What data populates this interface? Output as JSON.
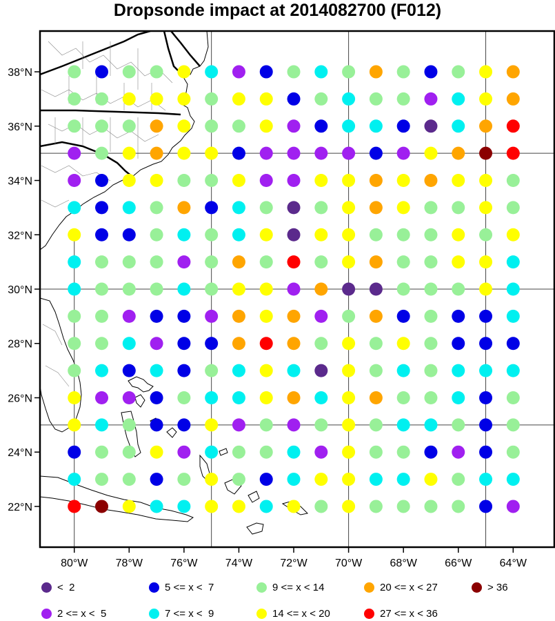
{
  "title": "Dropsonde impact at 2014082700 (F012)",
  "map": {
    "lon_range": [
      -81.25,
      -62.5
    ],
    "lat_range": [
      20.5,
      39.5
    ],
    "graticule_lons": [
      -75,
      -70,
      -65
    ],
    "graticule_lats": [
      25,
      30,
      35
    ],
    "lon_ticks": [
      -80,
      -78,
      -76,
      -74,
      -72,
      -70,
      -68,
      -66,
      -64
    ],
    "lon_tick_labels": [
      "80°W",
      "78°W",
      "76°W",
      "74°W",
      "72°W",
      "70°W",
      "68°W",
      "66°W",
      "64°W"
    ],
    "lat_ticks": [
      22,
      24,
      26,
      28,
      30,
      32,
      34,
      36,
      38
    ],
    "lat_tick_labels": [
      "22°N",
      "24°N",
      "26°N",
      "28°N",
      "30°N",
      "32°N",
      "34°N",
      "36°N",
      "38°N"
    ],
    "land_features": [
      "US East Coast",
      "Florida",
      "Bahamas",
      "Cuba"
    ]
  },
  "legend": {
    "items": [
      {
        "label": "<  2",
        "color": "#5b2a8c"
      },
      {
        "label": "2 <= x <  5",
        "color": "#a020f0"
      },
      {
        "label": "5 <= x <  7",
        "color": "#0000e6"
      },
      {
        "label": "7 <= x <  9",
        "color": "#00f0f0"
      },
      {
        "label": "9 <= x < 14",
        "color": "#98f098"
      },
      {
        "label": "14 <= x < 20",
        "color": "#ffff00"
      },
      {
        "label": "20 <= x < 27",
        "color": "#ffa500"
      },
      {
        "label": "27 <= x < 36",
        "color": "#ff0000"
      },
      {
        "label": "> 36",
        "color": "#8b0000"
      }
    ]
  },
  "chart_data": {
    "type": "scatter",
    "grid_lons": [
      -80,
      -79,
      -78,
      -77,
      -76,
      -75,
      -74,
      -73,
      -72,
      -71,
      -70,
      -69,
      -68,
      -67,
      -66,
      -65,
      -64
    ],
    "grid_lats": [
      38,
      37,
      36,
      35,
      34,
      33,
      32,
      31,
      30,
      29,
      28,
      27,
      26,
      25,
      24,
      23,
      22
    ],
    "class_codes": [
      "<  2",
      "2 <= x <  5",
      "5 <= x <  7",
      "7 <= x <  9",
      "9 <= x < 14",
      "14 <= x < 20",
      "20 <= x < 27",
      "27 <= x < 36",
      "> 36"
    ],
    "rows": [
      "GBGGYCPBGCGOGBGYO",
      "GGYYYGYYBGCGGPCYO",
      "GGGOYGGYPBCCBDCOR",
      "PGYOYYBPPPPBPYOSR",
      "PBYYGGYPPYYOYOYYG",
      "CBCGOBCGDGYOYGGYG",
      "YBBGCGCYDYYGGGYGY",
      "CGGGPGOGRGYOGGYYC",
      "CGGGCGYYPOMMGGGYC",
      "GGPBBPOYOPGOBGBBC",
      "GGCPBBOROGYGYGBBB",
      "GCBCBGCYCDYGCGCCC",
      "YPPBGCCYOCYOGGCBG",
      "YCGBBYPGPGYGCCGBG",
      "BGGYPCGGCPYGGBPBG",
      "CGGBGYGBCYYCCYGCC",
      "RSYCCYYCYGYGGGGBP"
    ]
  }
}
